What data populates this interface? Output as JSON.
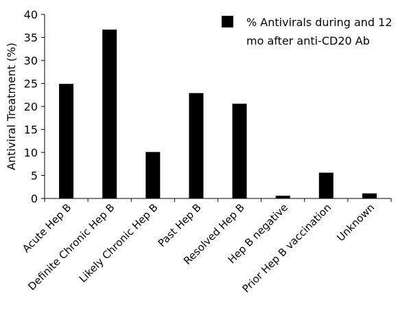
{
  "chart_data": {
    "type": "bar",
    "title": "",
    "xlabel": "",
    "ylabel": "Antiviral Treatment (%)",
    "ylim": [
      0,
      40
    ],
    "yticks": [
      "0",
      "5",
      "10",
      "15",
      "20",
      "25",
      "30",
      "35",
      "40"
    ],
    "grid": false,
    "legend_position": "top-right",
    "categories": [
      "Acute Hep B",
      "Definite Chronic Hep B",
      "Likely Chronic Hep B",
      "Past Hep B",
      "Resolved Hep B",
      "Hep B negative",
      "Prior Hep B vaccination",
      "Unknown"
    ],
    "series": [
      {
        "name": "% Antivirals during and 12 mo after anti-CD20 Ab",
        "legend_lines": [
          "% Antivirals during and 12",
          "mo after anti-CD20 Ab"
        ],
        "color": "#000000",
        "values": [
          24.9,
          36.7,
          10.1,
          22.9,
          20.6,
          0.6,
          5.6,
          1.1
        ]
      }
    ]
  }
}
